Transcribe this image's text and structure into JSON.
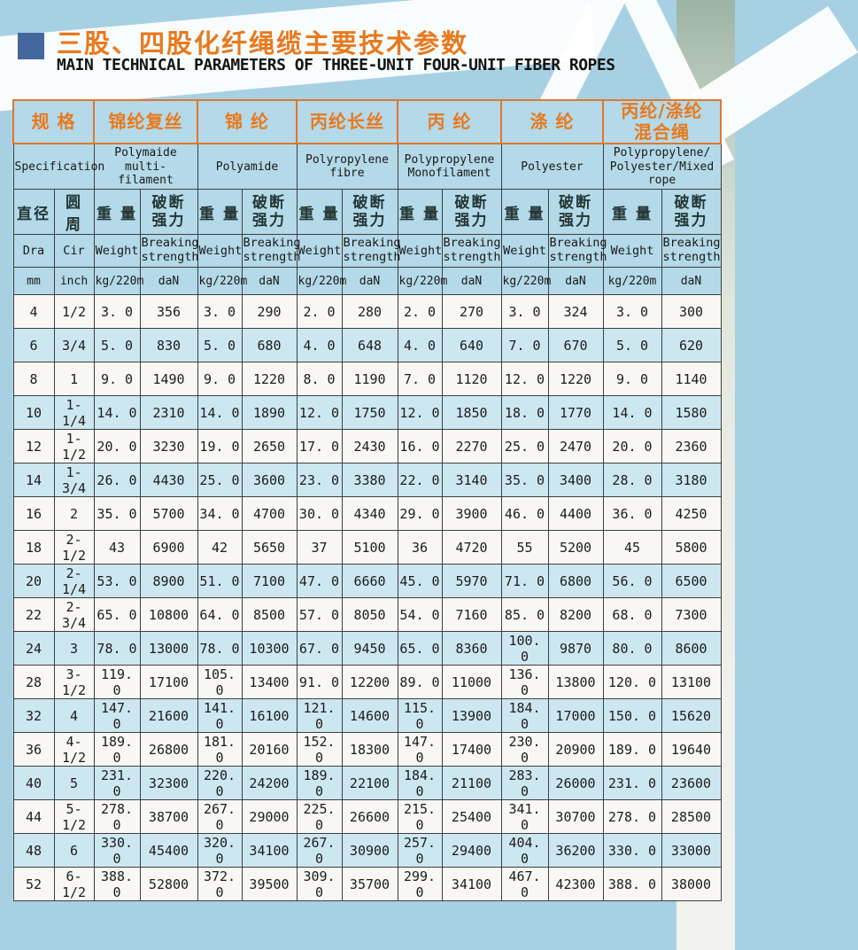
{
  "page": {
    "title_zh": "三股、四股化纤绳缆主要技术参数",
    "title_en": "MAIN TECHNICAL PARAMETERS OF THREE-UNIT FOUR-UNIT FIBER ROPES"
  },
  "colors": {
    "accent_orange": "#e8791c",
    "title_square_blue": "#44679e",
    "header_bg": "#b4d9e8",
    "row_blue": "#cde7f1",
    "row_white": "#f8f7f3",
    "border_dark": "#3d3f3f",
    "border_orange": "#e0762b",
    "page_bg": "#a7d1e2"
  },
  "table": {
    "spec": {
      "zh": "规 格",
      "en": "Specification"
    },
    "materials": [
      {
        "zh": "锦纶复丝",
        "en": "Polymaide multi-\nfilament"
      },
      {
        "zh": "锦 纶",
        "en": "Polyamide"
      },
      {
        "zh": "丙纶长丝",
        "en": "Polyropylene\nfibre"
      },
      {
        "zh": "丙 纶",
        "en": "Polypropylene\nMonofilament"
      },
      {
        "zh": "涤 纶",
        "en": "Polyester"
      },
      {
        "zh": "丙纶/涤纶\n混合绳",
        "en": "Polypropylene/\nPolyester/Mixed\nrope"
      }
    ],
    "sub": {
      "dia_zh": "直径",
      "cir_zh": "圆 周",
      "weight_zh": "重 量",
      "strength_zh": "破断\n强力",
      "dia_en": "Dra",
      "cir_en": "Cir",
      "weight_en": "Weight",
      "strength_en": "Breaking\nstrength",
      "dia_unit": "mm",
      "cir_unit": "inch",
      "weight_unit": "kg/220m",
      "strength_unit": "daN"
    },
    "rows": [
      {
        "dia": "4",
        "cir": "1/2",
        "shade": "white",
        "values": [
          "3. 0",
          "356",
          "3. 0",
          "290",
          "2. 0",
          "280",
          "2. 0",
          "270",
          "3. 0",
          "324",
          "3. 0",
          "300"
        ]
      },
      {
        "dia": "6",
        "cir": "3/4",
        "shade": "blue",
        "values": [
          "5. 0",
          "830",
          "5. 0",
          "680",
          "4. 0",
          "648",
          "4. 0",
          "640",
          "7. 0",
          "670",
          "5. 0",
          "620"
        ]
      },
      {
        "dia": "8",
        "cir": "1",
        "shade": "white",
        "values": [
          "9. 0",
          "1490",
          "9. 0",
          "1220",
          "8. 0",
          "1190",
          "7. 0",
          "1120",
          "12. 0",
          "1220",
          "9. 0",
          "1140"
        ]
      },
      {
        "dia": "10",
        "cir": "1-1/4",
        "shade": "blue",
        "values": [
          "14. 0",
          "2310",
          "14. 0",
          "1890",
          "12. 0",
          "1750",
          "12. 0",
          "1850",
          "18. 0",
          "1770",
          "14. 0",
          "1580"
        ]
      },
      {
        "dia": "12",
        "cir": "1-1/2",
        "shade": "white",
        "values": [
          "20. 0",
          "3230",
          "19. 0",
          "2650",
          "17. 0",
          "2430",
          "16. 0",
          "2270",
          "25. 0",
          "2470",
          "20. 0",
          "2360"
        ]
      },
      {
        "dia": "14",
        "cir": "1-3/4",
        "shade": "blue",
        "values": [
          "26. 0",
          "4430",
          "25. 0",
          "3600",
          "23. 0",
          "3380",
          "22. 0",
          "3140",
          "35. 0",
          "3400",
          "28. 0",
          "3180"
        ]
      },
      {
        "dia": "16",
        "cir": "2",
        "shade": "white",
        "values": [
          "35. 0",
          "5700",
          "34. 0",
          "4700",
          "30. 0",
          "4340",
          "29. 0",
          "3900",
          "46. 0",
          "4400",
          "36. 0",
          "4250"
        ]
      },
      {
        "dia": "18",
        "cir": "2-1/2",
        "shade": "white",
        "values": [
          "43",
          "6900",
          "42",
          "5650",
          "37",
          "5100",
          "36",
          "4720",
          "55",
          "5200",
          "45",
          "5800"
        ]
      },
      {
        "dia": "20",
        "cir": "2-1/4",
        "shade": "blue",
        "values": [
          "53. 0",
          "8900",
          "51. 0",
          "7100",
          "47. 0",
          "6660",
          "45. 0",
          "5970",
          "71. 0",
          "6800",
          "56. 0",
          "6500"
        ]
      },
      {
        "dia": "22",
        "cir": "2-3/4",
        "shade": "white",
        "values": [
          "65. 0",
          "10800",
          "64. 0",
          "8500",
          "57. 0",
          "8050",
          "54. 0",
          "7160",
          "85. 0",
          "8200",
          "68. 0",
          "7300"
        ]
      },
      {
        "dia": "24",
        "cir": "3",
        "shade": "blue",
        "values": [
          "78. 0",
          "13000",
          "78. 0",
          "10300",
          "67. 0",
          "9450",
          "65. 0",
          "8360",
          "100. 0",
          "9870",
          "80. 0",
          "8600"
        ]
      },
      {
        "dia": "28",
        "cir": "3-1/2",
        "shade": "white",
        "values": [
          "119. 0",
          "17100",
          "105. 0",
          "13400",
          "91. 0",
          "12200",
          "89. 0",
          "11000",
          "136. 0",
          "13800",
          "120. 0",
          "13100"
        ]
      },
      {
        "dia": "32",
        "cir": "4",
        "shade": "blue",
        "values": [
          "147. 0",
          "21600",
          "141. 0",
          "16100",
          "121. 0",
          "14600",
          "115. 0",
          "13900",
          "184. 0",
          "17000",
          "150. 0",
          "15620"
        ]
      },
      {
        "dia": "36",
        "cir": "4-1/2",
        "shade": "white",
        "values": [
          "189. 0",
          "26800",
          "181. 0",
          "20160",
          "152. 0",
          "18300",
          "147. 0",
          "17400",
          "230. 0",
          "20900",
          "189. 0",
          "19640"
        ]
      },
      {
        "dia": "40",
        "cir": "5",
        "shade": "blue",
        "values": [
          "231. 0",
          "32300",
          "220. 0",
          "24200",
          "189. 0",
          "22100",
          "184. 0",
          "21100",
          "283. 0",
          "26000",
          "231. 0",
          "23600"
        ]
      },
      {
        "dia": "44",
        "cir": "5-1/2",
        "shade": "white",
        "values": [
          "278. 0",
          "38700",
          "267. 0",
          "29000",
          "225. 0",
          "26600",
          "215. 0",
          "25400",
          "341. 0",
          "30700",
          "278. 0",
          "28500"
        ]
      },
      {
        "dia": "48",
        "cir": "6",
        "shade": "blue",
        "values": [
          "330. 0",
          "45400",
          "320. 0",
          "34100",
          "267. 0",
          "30900",
          "257. 0",
          "29400",
          "404. 0",
          "36200",
          "330. 0",
          "33000"
        ]
      },
      {
        "dia": "52",
        "cir": "6-1/2",
        "shade": "white",
        "values": [
          "388. 0",
          "52800",
          "372. 0",
          "39500",
          "309. 0",
          "35700",
          "299. 0",
          "34100",
          "467. 0",
          "42300",
          "388. 0",
          "38000"
        ]
      }
    ]
  }
}
